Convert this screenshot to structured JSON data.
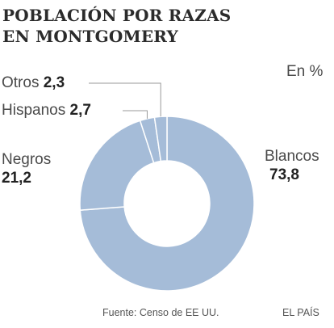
{
  "header": {
    "title_line1": "POBLACIÓN POR RAZAS",
    "title_line2": "EN MONTGOMERY",
    "unit": "En %"
  },
  "footer": {
    "source": "Fuente: Censo de EE UU.",
    "brand": "EL PAÍS"
  },
  "colors": {
    "slice": "#a5bcd8",
    "separator": "#ffffff",
    "leader": "#9a9a9a"
  },
  "chart_data": {
    "type": "pie",
    "variant": "donut",
    "title": "POBLACIÓN POR RAZAS EN MONTGOMERY",
    "unit": "En %",
    "slices": [
      {
        "label": "Blancos",
        "value": 73.8,
        "value_text": "73,8"
      },
      {
        "label": "Negros",
        "value": 21.2,
        "value_text": "21,2"
      },
      {
        "label": "Hispanos",
        "value": 2.7,
        "value_text": "2,7"
      },
      {
        "label": "Otros",
        "value": 2.3,
        "value_text": "2,3"
      }
    ]
  }
}
